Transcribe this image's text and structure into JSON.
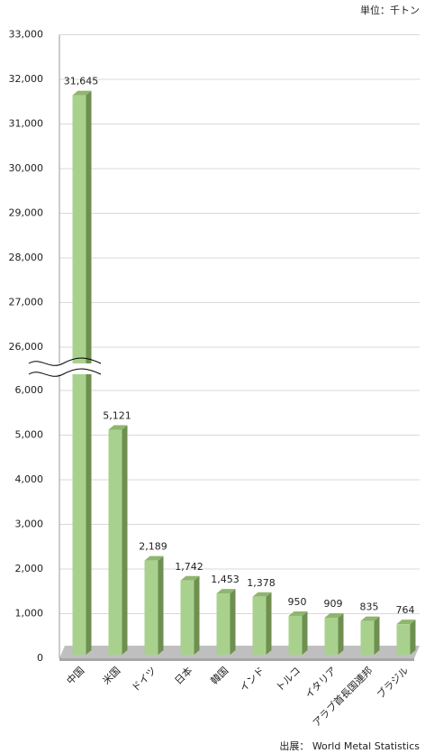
{
  "chart_data": {
    "type": "bar3d",
    "unit_note": "単位：千トン",
    "source": "出展：  World Metal Statistics",
    "categories": [
      "中国",
      "米国",
      "ドイツ",
      "日本",
      "韓国",
      "インド",
      "トルコ",
      "イタリア",
      "アラブ首長国連邦",
      "ブラジル"
    ],
    "values": [
      31645,
      5121,
      2189,
      1742,
      1453,
      1378,
      950,
      909,
      835,
      764
    ],
    "value_labels": [
      "31,645",
      "5,121",
      "2,189",
      "1,742",
      "1,453",
      "1,378",
      "950",
      "909",
      "835",
      "764"
    ],
    "color": "#a9d18e",
    "ylim": [
      0,
      33000
    ],
    "axis_break": [
      6000,
      26000
    ],
    "yticks": [
      0,
      {
        "value": 1000,
        "label": "1,000"
      },
      {
        "value": 2000,
        "label": "2,000"
      },
      {
        "value": 3000,
        "label": "3,000"
      },
      {
        "value": 4000,
        "label": "4,000"
      },
      {
        "value": 5000,
        "label": "5,000"
      },
      {
        "value": 6000,
        "label": "6,000"
      },
      {
        "value": 26000,
        "label": "26,000"
      },
      {
        "value": 27000,
        "label": "27,000"
      },
      {
        "value": 28000,
        "label": "28,000"
      },
      {
        "value": 29000,
        "label": "29,000"
      },
      {
        "value": 30000,
        "label": "30,000"
      },
      {
        "value": 31000,
        "label": "31,000"
      },
      {
        "value": 32000,
        "label": "32,000"
      },
      {
        "value": 33000,
        "label": "33,000"
      }
    ],
    "grid": true
  }
}
